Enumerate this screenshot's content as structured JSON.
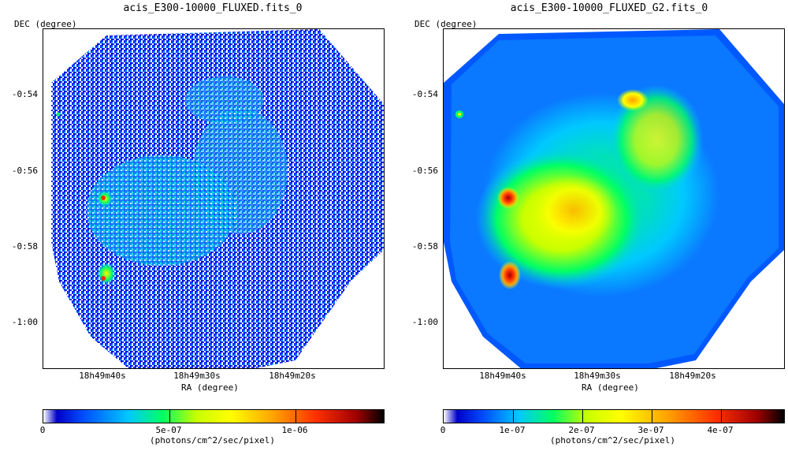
{
  "panels": [
    {
      "title": "acis_E300-10000_FLUXED.fits_0",
      "y_axis_label": "DEC (degree)",
      "x_axis_label": "RA (degree)",
      "y_ticks": [
        "-0:54",
        "-0:56",
        "-0:58",
        "-1:00"
      ],
      "x_ticks": [
        "18h49m40s",
        "18h49m30s",
        "18h49m20s"
      ],
      "colorbar": {
        "ticks": [
          "0",
          "5e-07",
          "1e-06"
        ],
        "unit": "(photons/cm^2/sec/pixel)"
      }
    },
    {
      "title": "acis_E300-10000_FLUXED_G2.fits_0",
      "y_axis_label": "DEC (degree)",
      "x_axis_label": "RA (degree)",
      "y_ticks": [
        "-0:54",
        "-0:56",
        "-0:58",
        "-1:00"
      ],
      "x_ticks": [
        "18h49m40s",
        "18h49m30s",
        "18h49m20s"
      ],
      "colorbar": {
        "ticks": [
          "0",
          "1e-07",
          "2e-07",
          "3e-07",
          "4e-07"
        ],
        "unit": "(photons/cm^2/sec/pixel)"
      }
    }
  ],
  "colormap": [
    "#ffffff",
    "#0000c8",
    "#0050ff",
    "#00c8ff",
    "#00ff64",
    "#c8ff00",
    "#ffff00",
    "#ffa000",
    "#ff3000",
    "#a00000",
    "#000000"
  ]
}
